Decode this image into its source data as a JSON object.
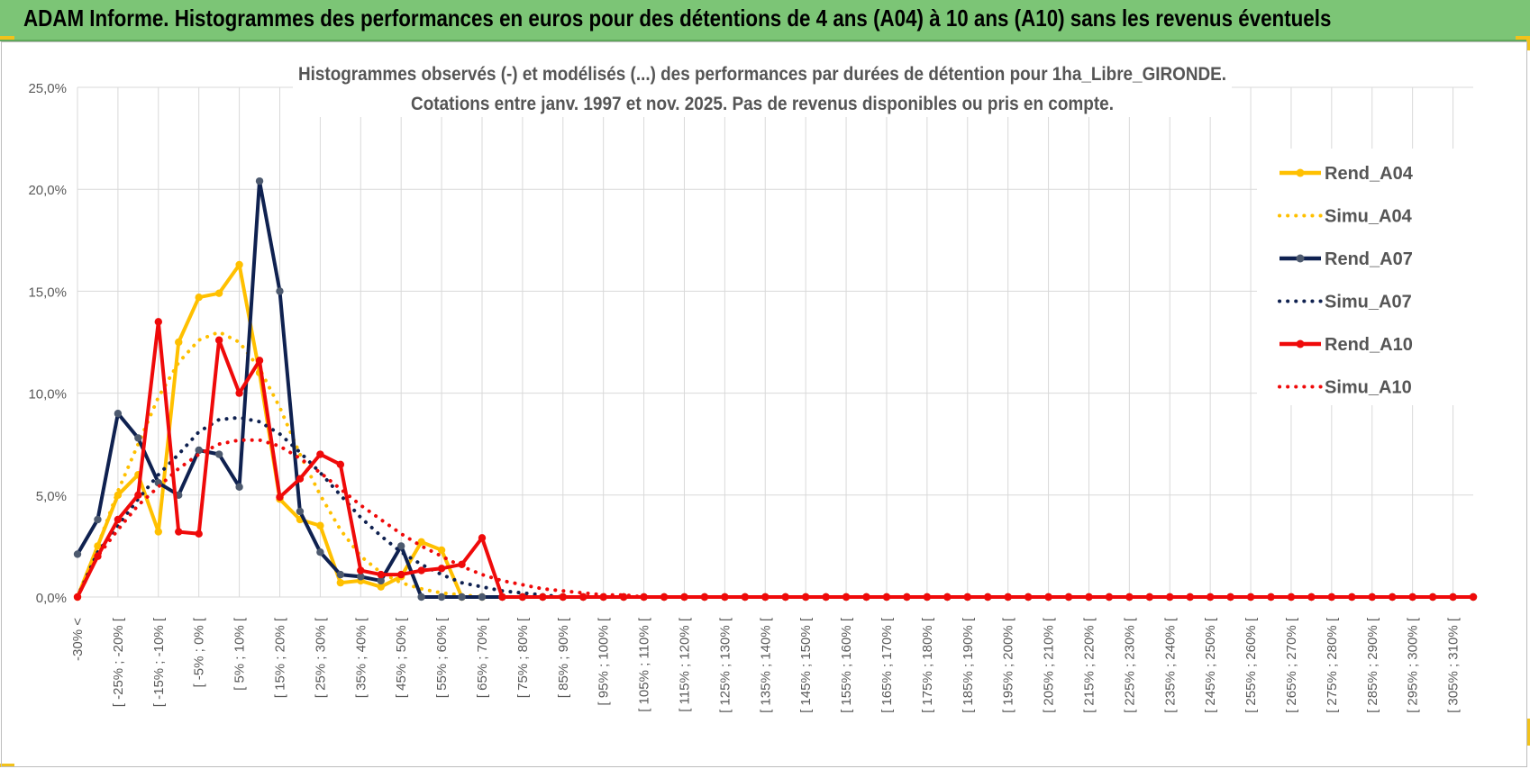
{
  "header": {
    "title": "ADAM Informe. Histogrammes des performances en euros pour des détentions de 4 ans (A04) à 10 ans (A10) sans les revenus éventuels"
  },
  "colors": {
    "banner": "#7cc576",
    "A04": "#ffc000",
    "A07": "#0f2150",
    "A10": "#ef0a0a",
    "A07_marker": "#4d5a6f",
    "grid": "#d9d9d9"
  },
  "chart_data": {
    "type": "line",
    "title_line1": "Histogrammes observés (-) et modélisés (...) des performances par durées de détention pour 1ha_Libre_GIRONDE.",
    "title_line2": "Cotations entre janv. 1997 et nov. 2025. Pas de revenus disponibles ou pris en compte.",
    "ylim": [
      0,
      25
    ],
    "y_ticks": [
      "0,0%",
      "5,0%",
      "10,0%",
      "15,0%",
      "20,0%",
      "25,0%"
    ],
    "x_labels": [
      "-30% <",
      "[ -25% ; -20% [",
      "[ -15% ; -10% [",
      "[ -5% ; 0% [",
      "[ 5% ; 10% [",
      "[ 15% ; 20% [",
      "[ 25% ; 30% [",
      "[ 35% ; 40% [",
      "[ 45% ; 50% [",
      "[ 55% ; 60% [",
      "[ 65% ; 70% [",
      "[ 75% ; 80% [",
      "[ 85% ; 90% [",
      "[ 95% ; 100% [",
      "[ 105% ; 110% [",
      "[ 115% ; 120% [",
      "[ 125% ; 130% [",
      "[ 135% ; 140% [",
      "[ 145% ; 150% [",
      "[ 155% ; 160% [",
      "[ 165% ; 170% [",
      "[ 175% ; 180% [",
      "[ 185% ; 190% [",
      "[ 195% ; 200% [",
      "[ 205% ; 210% [",
      "[ 215% ; 220% [",
      "[ 225% ; 230% [",
      "[ 235% ; 240% [",
      "[ 245% ; 250% [",
      "[ 255% ; 260% [",
      "[ 265% ; 270% [",
      "[ 275% ; 280% [",
      "[ 285% ; 290% [",
      "[ 295% ; 300% [",
      "[ 305% ; 310% ["
    ],
    "n_points": 70,
    "series": [
      {
        "name": "Rend_A04",
        "style": "solid",
        "color": "#ffc000",
        "values": [
          0,
          2.5,
          5,
          6,
          3.2,
          12.5,
          14.7,
          14.9,
          16.3,
          11,
          4.8,
          3.8,
          3.5,
          0.7,
          0.8,
          0.5,
          1,
          2.7,
          2.3,
          0,
          0,
          0,
          0,
          0,
          0,
          0,
          0,
          0,
          0,
          0,
          0,
          0,
          0,
          0,
          0,
          0,
          0,
          0,
          0,
          0,
          0,
          0,
          0,
          0,
          0,
          0,
          0,
          0,
          0,
          0,
          0,
          0,
          0,
          0,
          0,
          0,
          0,
          0,
          0,
          0,
          0,
          0,
          0,
          0,
          0,
          0,
          0,
          0,
          0,
          0
        ]
      },
      {
        "name": "Simu_A04",
        "style": "dotted",
        "color": "#ffc000",
        "values": [
          0,
          2.5,
          5.2,
          7.5,
          9.8,
          11.5,
          12.6,
          13,
          12.5,
          11.2,
          9.3,
          7,
          5,
          3.3,
          2,
          1.2,
          0.7,
          0.4,
          0.2,
          0.1,
          0,
          0,
          0,
          0,
          0,
          0,
          0,
          0,
          0,
          0,
          0,
          0,
          0,
          0,
          0,
          0,
          0,
          0,
          0,
          0,
          0,
          0,
          0,
          0,
          0,
          0,
          0,
          0,
          0,
          0,
          0,
          0,
          0,
          0,
          0,
          0,
          0,
          0,
          0,
          0,
          0,
          0,
          0,
          0,
          0,
          0,
          0,
          0,
          0,
          0
        ]
      },
      {
        "name": "Rend_A07",
        "style": "solid",
        "color": "#0f2150",
        "values": [
          2.1,
          3.8,
          9,
          7.8,
          5.6,
          5,
          7.2,
          7,
          5.4,
          20.4,
          15,
          4.2,
          2.2,
          1.1,
          1,
          0.8,
          2.5,
          0,
          0,
          0,
          0,
          0,
          0,
          0,
          0,
          0,
          0,
          0,
          0,
          0,
          0,
          0,
          0,
          0,
          0,
          0,
          0,
          0,
          0,
          0,
          0,
          0,
          0,
          0,
          0,
          0,
          0,
          0,
          0,
          0,
          0,
          0,
          0,
          0,
          0,
          0,
          0,
          0,
          0,
          0,
          0,
          0,
          0,
          0,
          0,
          0,
          0,
          0,
          0,
          0
        ]
      },
      {
        "name": "Simu_A07",
        "style": "dotted",
        "color": "#0f2150",
        "values": [
          0,
          2.2,
          3.5,
          4.8,
          6,
          7,
          8.1,
          8.7,
          8.8,
          8.6,
          8,
          7.1,
          6.1,
          5,
          3.9,
          3,
          2.2,
          1.6,
          1.1,
          0.7,
          0.5,
          0.3,
          0.2,
          0.1,
          0,
          0,
          0,
          0,
          0,
          0,
          0,
          0,
          0,
          0,
          0,
          0,
          0,
          0,
          0,
          0,
          0,
          0,
          0,
          0,
          0,
          0,
          0,
          0,
          0,
          0,
          0,
          0,
          0,
          0,
          0,
          0,
          0,
          0,
          0,
          0,
          0,
          0,
          0,
          0,
          0,
          0,
          0,
          0,
          0,
          0
        ]
      },
      {
        "name": "Rend_A10",
        "style": "solid",
        "color": "#ef0a0a",
        "values": [
          0,
          2,
          3.8,
          5,
          13.5,
          3.2,
          3.1,
          12.6,
          10,
          11.6,
          4.9,
          5.8,
          7,
          6.5,
          1.3,
          1.1,
          1.1,
          1.3,
          1.4,
          1.6,
          2.9,
          0,
          0,
          0,
          0,
          0,
          0,
          0,
          0,
          0,
          0,
          0,
          0,
          0,
          0,
          0,
          0,
          0,
          0,
          0,
          0,
          0,
          0,
          0,
          0,
          0,
          0,
          0,
          0,
          0,
          0,
          0,
          0,
          0,
          0,
          0,
          0,
          0,
          0,
          0,
          0,
          0,
          0,
          0,
          0,
          0,
          0,
          0,
          0,
          0
        ]
      },
      {
        "name": "Simu_A10",
        "style": "dotted",
        "color": "#ef0a0a",
        "values": [
          0,
          2,
          3.3,
          4.5,
          5.4,
          6.3,
          7,
          7.5,
          7.7,
          7.7,
          7.4,
          6.8,
          6.1,
          5.3,
          4.5,
          3.8,
          3.1,
          2.5,
          2,
          1.5,
          1.1,
          0.8,
          0.6,
          0.4,
          0.3,
          0.2,
          0.1,
          0.1,
          0,
          0,
          0,
          0,
          0,
          0,
          0,
          0,
          0,
          0,
          0,
          0,
          0,
          0,
          0,
          0,
          0,
          0,
          0,
          0,
          0,
          0,
          0,
          0,
          0,
          0,
          0,
          0,
          0,
          0,
          0,
          0,
          0,
          0,
          0,
          0,
          0,
          0,
          0,
          0,
          0,
          0
        ]
      }
    ],
    "legend_position": "right"
  }
}
